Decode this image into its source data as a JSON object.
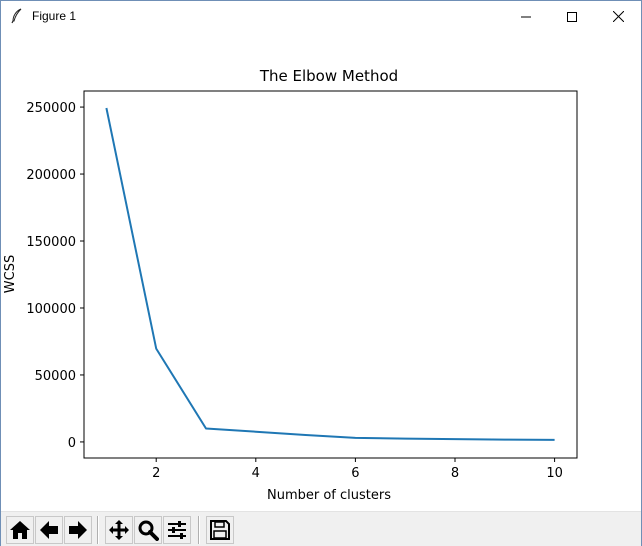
{
  "window": {
    "title": "Figure 1",
    "icons": {
      "app": "feather-icon",
      "minimize": "minimize-icon",
      "maximize": "maximize-icon",
      "close": "close-icon"
    }
  },
  "chart_data": {
    "type": "line",
    "title": "The Elbow Method",
    "xlabel": "Number of clusters",
    "ylabel": "WCSS",
    "x": [
      1,
      2,
      3,
      4,
      5,
      6,
      7,
      8,
      9,
      10
    ],
    "series": [
      {
        "values": [
          249300,
          69700,
          10000,
          7600,
          5200,
          3000,
          2500,
          2100,
          1700,
          1500
        ],
        "color": "#1f77b4"
      }
    ],
    "xlim": [
      0.55,
      10.45
    ],
    "ylim": [
      -12000,
      262000
    ],
    "xticks": [
      2,
      4,
      6,
      8,
      10
    ],
    "yticks": [
      0,
      50000,
      100000,
      150000,
      200000,
      250000
    ],
    "xtick_labels": [
      "2",
      "4",
      "6",
      "8",
      "10"
    ],
    "ytick_labels": [
      "0",
      "50000",
      "100000",
      "150000",
      "200000",
      "250000"
    ],
    "grid": false
  },
  "toolbar": {
    "buttons": [
      {
        "name": "home-button",
        "icon": "home-icon"
      },
      {
        "name": "back-button",
        "icon": "arrow-left-icon"
      },
      {
        "name": "forward-button",
        "icon": "arrow-right-icon"
      },
      {
        "name": "pan-button",
        "icon": "move-icon"
      },
      {
        "name": "zoom-button",
        "icon": "magnifier-icon"
      },
      {
        "name": "configure-subplots-button",
        "icon": "sliders-icon"
      },
      {
        "name": "save-button",
        "icon": "floppy-disk-icon"
      }
    ]
  }
}
